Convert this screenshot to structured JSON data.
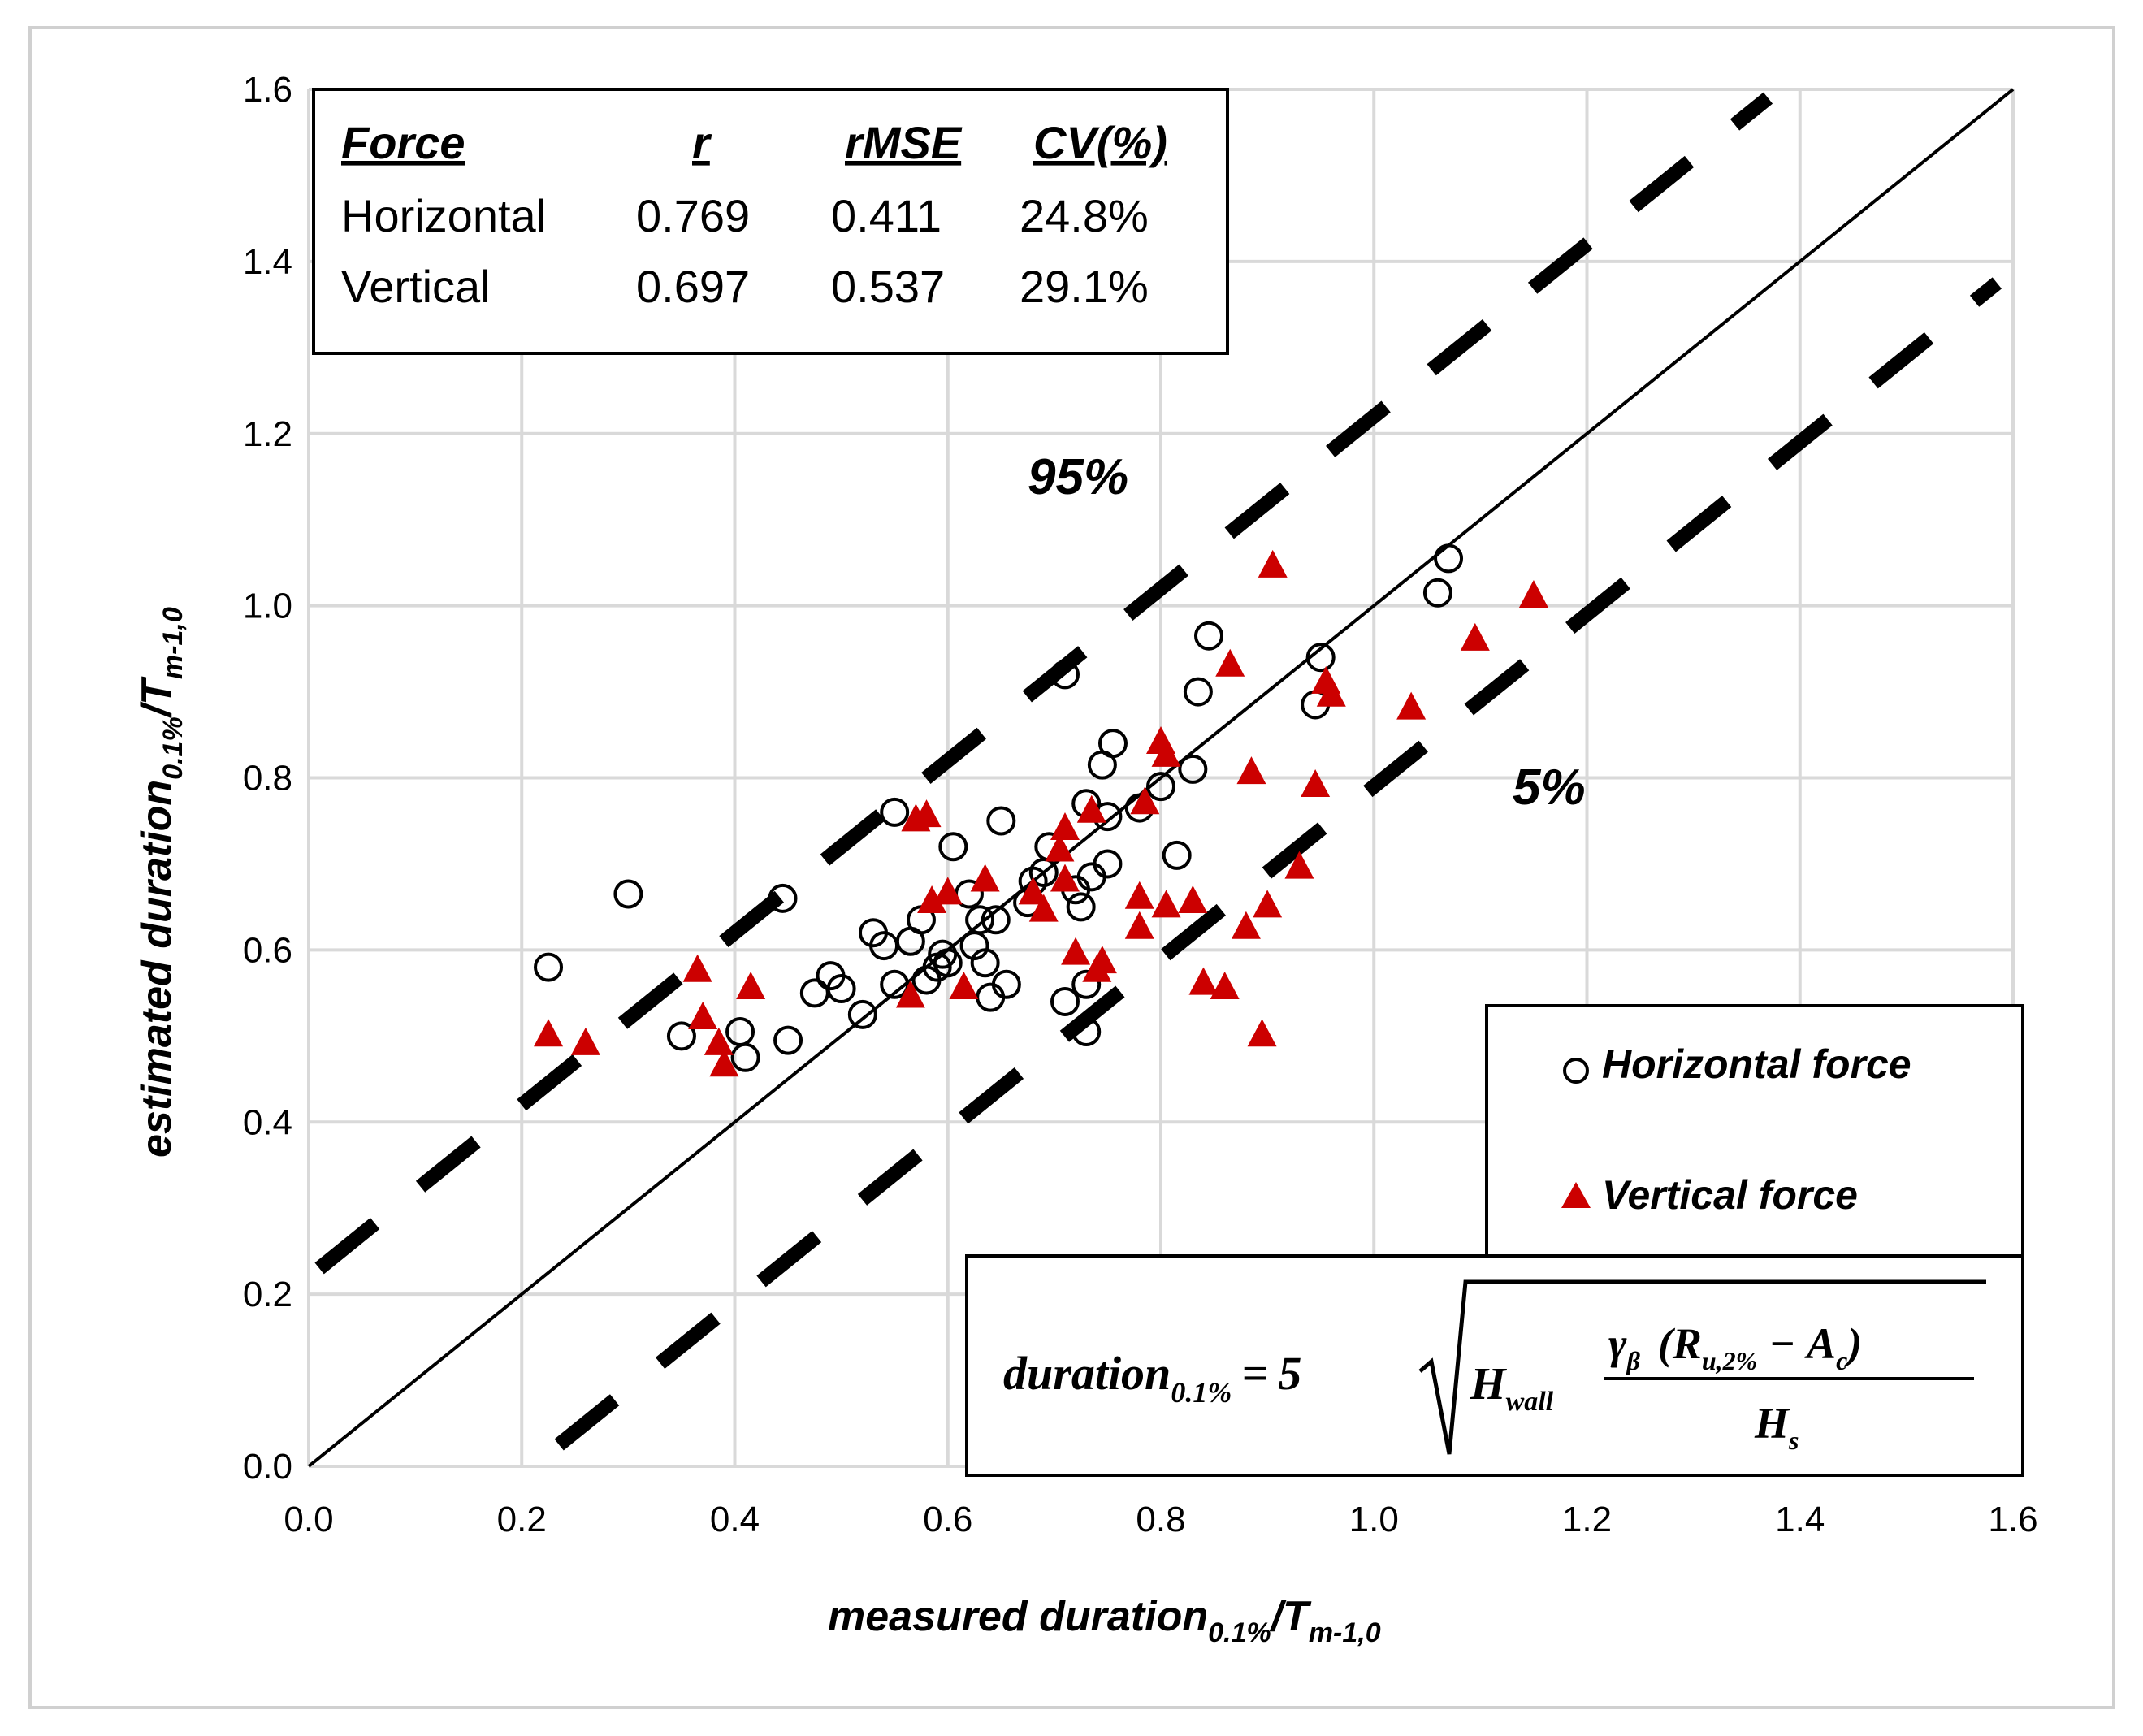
{
  "chart_data": {
    "type": "scatter",
    "xlabel": "measured duration",
    "xlabel_sub": "0.1%",
    "xlabel_tail": "/T",
    "xlabel_tail_sub": "m-1,0",
    "ylabel": "estimated duration",
    "ylabel_sub": "0.1%",
    "ylabel_tail": "/T",
    "ylabel_tail_sub": "m-1,0",
    "xlim": [
      0,
      1.6
    ],
    "ylim": [
      0,
      1.6
    ],
    "xticks": [
      "0.0",
      "0.2",
      "0.4",
      "0.6",
      "0.8",
      "1.0",
      "1.2",
      "1.4",
      "1.6"
    ],
    "yticks": [
      "0.0",
      "0.2",
      "0.4",
      "0.6",
      "0.8",
      "1.0",
      "1.2",
      "1.4",
      "1.6"
    ],
    "grid": true,
    "lines": [
      {
        "name": "1:1",
        "style": "solid",
        "points": [
          [
            0,
            0
          ],
          [
            1.6,
            1.6
          ]
        ]
      },
      {
        "name": "95%",
        "style": "dashed",
        "points": [
          [
            0.01,
            0.23
          ],
          [
            1.37,
            1.59
          ]
        ]
      },
      {
        "name": "5%",
        "style": "dashed",
        "points": [
          [
            0.235,
            0.025
          ],
          [
            1.585,
            1.375
          ]
        ]
      }
    ],
    "band_labels": {
      "upper": "95%",
      "lower": "5%"
    },
    "stats_table": {
      "headers": [
        "Force",
        "r",
        "rMSE",
        "CV(%)"
      ],
      "rows": [
        [
          "Horizontal",
          "0.769",
          "0.411",
          "24.8%"
        ],
        [
          "Vertical",
          "0.697",
          "0.537",
          "29.1%"
        ]
      ]
    },
    "legend": {
      "horizontal": "Horizontal force",
      "vertical": "Vertical force"
    },
    "series": [
      {
        "name": "Horizontal force",
        "marker": "open-circle",
        "color": "#000000",
        "points": [
          [
            0.225,
            0.58
          ],
          [
            0.3,
            0.665
          ],
          [
            0.35,
            0.5
          ],
          [
            0.405,
            0.505
          ],
          [
            0.41,
            0.475
          ],
          [
            0.445,
            0.66
          ],
          [
            0.45,
            0.495
          ],
          [
            0.475,
            0.55
          ],
          [
            0.49,
            0.57
          ],
          [
            0.5,
            0.555
          ],
          [
            0.52,
            0.525
          ],
          [
            0.53,
            0.62
          ],
          [
            0.54,
            0.605
          ],
          [
            0.55,
            0.56
          ],
          [
            0.55,
            0.76
          ],
          [
            0.565,
            0.61
          ],
          [
            0.575,
            0.635
          ],
          [
            0.58,
            0.565
          ],
          [
            0.59,
            0.58
          ],
          [
            0.595,
            0.595
          ],
          [
            0.6,
            0.585
          ],
          [
            0.605,
            0.72
          ],
          [
            0.62,
            0.665
          ],
          [
            0.625,
            0.605
          ],
          [
            0.63,
            0.635
          ],
          [
            0.635,
            0.585
          ],
          [
            0.64,
            0.545
          ],
          [
            0.645,
            0.635
          ],
          [
            0.65,
            0.75
          ],
          [
            0.655,
            0.56
          ],
          [
            0.675,
            0.655
          ],
          [
            0.68,
            0.68
          ],
          [
            0.69,
            0.69
          ],
          [
            0.695,
            0.72
          ],
          [
            0.71,
            0.54
          ],
          [
            0.71,
            0.92
          ],
          [
            0.72,
            0.67
          ],
          [
            0.725,
            0.65
          ],
          [
            0.73,
            0.77
          ],
          [
            0.73,
            0.56
          ],
          [
            0.73,
            0.505
          ],
          [
            0.735,
            0.685
          ],
          [
            0.745,
            0.815
          ],
          [
            0.75,
            0.7
          ],
          [
            0.75,
            0.755
          ],
          [
            0.755,
            0.84
          ],
          [
            0.78,
            0.765
          ],
          [
            0.8,
            0.79
          ],
          [
            0.815,
            0.71
          ],
          [
            0.83,
            0.81
          ],
          [
            0.835,
            0.9
          ],
          [
            0.845,
            0.965
          ],
          [
            0.945,
            0.885
          ],
          [
            0.95,
            0.94
          ],
          [
            1.06,
            1.015
          ],
          [
            1.07,
            1.055
          ]
        ]
      },
      {
        "name": "Vertical force",
        "marker": "filled-triangle",
        "color": "#cc0000",
        "points": [
          [
            0.225,
            0.5
          ],
          [
            0.26,
            0.49
          ],
          [
            0.365,
            0.575
          ],
          [
            0.37,
            0.52
          ],
          [
            0.385,
            0.49
          ],
          [
            0.39,
            0.465
          ],
          [
            0.415,
            0.555
          ],
          [
            0.565,
            0.545
          ],
          [
            0.57,
            0.75
          ],
          [
            0.58,
            0.755
          ],
          [
            0.585,
            0.655
          ],
          [
            0.6,
            0.665
          ],
          [
            0.615,
            0.555
          ],
          [
            0.635,
            0.68
          ],
          [
            0.68,
            0.665
          ],
          [
            0.69,
            0.645
          ],
          [
            0.705,
            0.715
          ],
          [
            0.71,
            0.74
          ],
          [
            0.71,
            0.68
          ],
          [
            0.72,
            0.595
          ],
          [
            0.735,
            0.76
          ],
          [
            0.74,
            0.575
          ],
          [
            0.745,
            0.585
          ],
          [
            0.78,
            0.625
          ],
          [
            0.78,
            0.66
          ],
          [
            0.785,
            0.77
          ],
          [
            0.8,
            0.84
          ],
          [
            0.805,
            0.825
          ],
          [
            0.805,
            0.65
          ],
          [
            0.83,
            0.655
          ],
          [
            0.84,
            0.56
          ],
          [
            0.86,
            0.555
          ],
          [
            0.865,
            0.93
          ],
          [
            0.88,
            0.625
          ],
          [
            0.885,
            0.805
          ],
          [
            0.895,
            0.5
          ],
          [
            0.9,
            0.65
          ],
          [
            0.905,
            1.045
          ],
          [
            0.93,
            0.695
          ],
          [
            0.945,
            0.79
          ],
          [
            0.955,
            0.91
          ],
          [
            0.96,
            0.895
          ],
          [
            1.035,
            0.88
          ],
          [
            1.095,
            0.96
          ],
          [
            1.15,
            1.01
          ]
        ]
      }
    ],
    "formula": {
      "lhs": "duration",
      "lhs_sub": "0.1%",
      "equals": "=",
      "coef": "5",
      "hwall": "H",
      "hwall_sub": "wall",
      "gamma": "γ",
      "gamma_sub": "β",
      "open": "(",
      "ru": "R",
      "ru_sub": "u,2%",
      "minus": "−",
      "ac": "A",
      "ac_sub": "c",
      "close": ")",
      "hs": "H",
      "hs_sub": "s"
    }
  }
}
